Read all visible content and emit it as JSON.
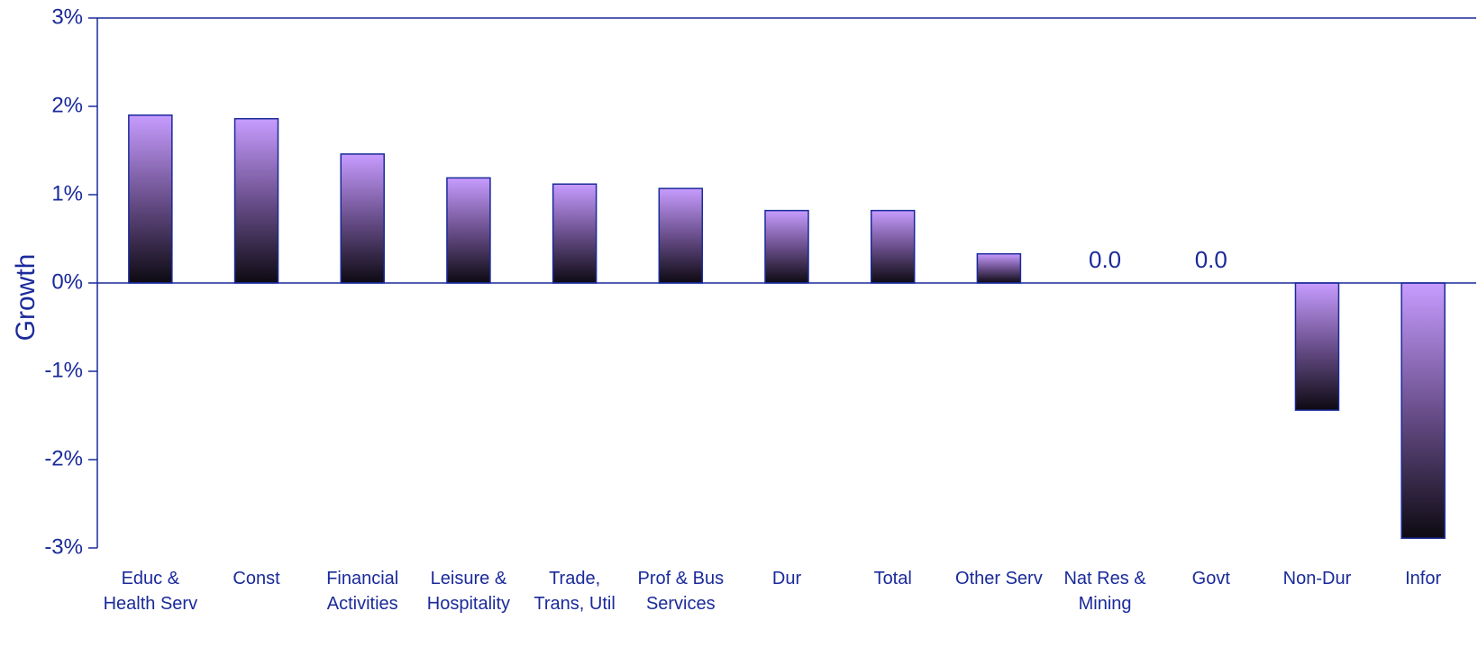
{
  "chart_data": {
    "type": "bar",
    "y_label": "Growth",
    "categories": [
      "Educ & Health Serv",
      "Const",
      "Financial Activities",
      "Leisure & Hospitality",
      "Trade, Trans, Util",
      "Prof & Bus Services",
      "Dur",
      "Total",
      "Other Serv",
      "Nat Res & Mining",
      "Govt",
      "Non-Dur",
      "Infor"
    ],
    "values": [
      1.9,
      1.86,
      1.46,
      1.19,
      1.12,
      1.07,
      0.82,
      0.82,
      0.33,
      0.0,
      0.0,
      -1.44,
      -2.89
    ],
    "value_labels": [
      null,
      null,
      null,
      null,
      null,
      null,
      null,
      null,
      null,
      "0.0",
      "0.0",
      null,
      null
    ],
    "color": "#c79cff",
    "ylim": [
      -3,
      3
    ],
    "yticks": [
      {
        "value": -3,
        "label": "-3%"
      },
      {
        "value": -2,
        "label": "-2%"
      },
      {
        "value": -1,
        "label": "-1%"
      },
      {
        "value": 0,
        "label": "0%"
      },
      {
        "value": 1,
        "label": "1%"
      },
      {
        "value": 2,
        "label": "2%"
      },
      {
        "value": 3,
        "label": "3%"
      }
    ],
    "grid": false
  }
}
